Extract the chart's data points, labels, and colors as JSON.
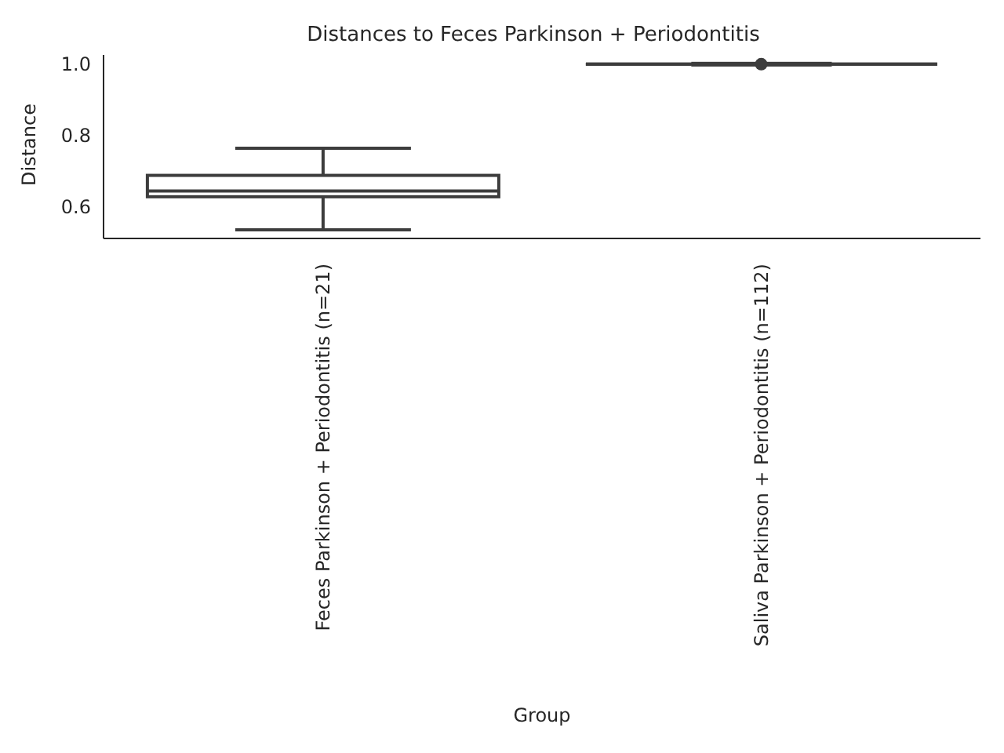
{
  "chart_data": {
    "type": "box",
    "title": "Distances to Feces Parkinson + Periodontitis",
    "xlabel": "Group",
    "ylabel": "Distance",
    "categories": [
      "Feces Parkinson + Periodontitis (n=21)",
      "Saliva Parkinson + Periodontitis (n=112)"
    ],
    "boxes": [
      {
        "low": 0.535,
        "q1": 0.628,
        "median": 0.644,
        "q3": 0.688,
        "high": 0.764
      },
      {
        "low": 1.0,
        "q1": 1.0,
        "median": 1.0,
        "q3": 1.0,
        "high": 1.0,
        "outliers": [
          1.0
        ]
      }
    ],
    "color": "#3d3d3d",
    "ylim": [
      0.511,
      1.026
    ],
    "yticks": [
      {
        "value": 0.6,
        "label": "0.6"
      },
      {
        "value": 0.8,
        "label": "0.8"
      },
      {
        "value": 1.0,
        "label": "1.0"
      }
    ],
    "grid": false
  }
}
